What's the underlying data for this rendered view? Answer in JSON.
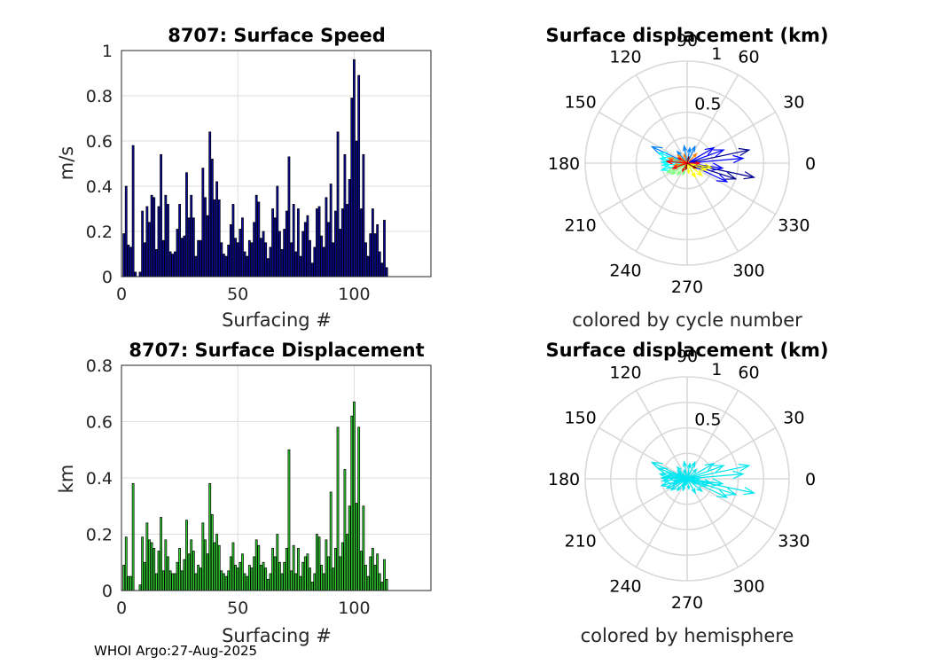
{
  "footer": "WHOI Argo:27-Aug-2025",
  "chart_data": [
    {
      "id": "speed",
      "type": "bar",
      "title": "8707: Surface Speed",
      "xlabel": "Surfacing #",
      "ylabel": "m/s",
      "xlim": [
        0,
        133
      ],
      "ylim": [
        0,
        1
      ],
      "xticks": [
        "0",
        "50",
        "100"
      ],
      "xtick_values": [
        0,
        50,
        100
      ],
      "yticks": [
        "0",
        "0.2",
        "0.4",
        "0.6",
        "0.8",
        "1"
      ],
      "ytick_values": [
        0,
        0.2,
        0.4,
        0.6,
        0.8,
        1
      ],
      "grid": true,
      "bar_color": "#0a0a9e",
      "values": [
        0.19,
        0.4,
        0.14,
        0.13,
        0.58,
        0.02,
        0.0,
        0.02,
        0.29,
        0.15,
        0.31,
        0.24,
        0.36,
        0.35,
        0.12,
        0.31,
        0.54,
        0.16,
        0.36,
        0.32,
        0.11,
        0.1,
        0.11,
        0.21,
        0.32,
        0.17,
        0.18,
        0.46,
        0.26,
        0.36,
        0.26,
        0.09,
        0.16,
        0.16,
        0.48,
        0.35,
        0.27,
        0.64,
        0.52,
        0.34,
        0.42,
        0.34,
        0.15,
        0.1,
        0.09,
        0.14,
        0.23,
        0.32,
        0.17,
        0.15,
        0.21,
        0.26,
        0.11,
        0.09,
        0.16,
        0.15,
        0.24,
        0.36,
        0.33,
        0.17,
        0.2,
        0.15,
        0.08,
        0.13,
        0.3,
        0.26,
        0.4,
        0.2,
        0.12,
        0.21,
        0.29,
        0.53,
        0.15,
        0.32,
        0.11,
        0.3,
        0.09,
        0.2,
        0.24,
        0.27,
        0.16,
        0.06,
        0.13,
        0.3,
        0.31,
        0.18,
        0.13,
        0.35,
        0.24,
        0.41,
        0.15,
        0.29,
        0.64,
        0.21,
        0.3,
        0.54,
        0.32,
        0.43,
        0.79,
        0.96,
        0.6,
        0.89,
        0.3,
        0.54,
        0.15,
        0.09,
        0.19,
        0.3,
        0.19,
        0.23,
        0.11,
        0.06,
        0.25,
        0.04
      ]
    },
    {
      "id": "displacement",
      "type": "bar",
      "title": "8707: Surface Displacement",
      "xlabel": "Surfacing #",
      "ylabel": "km",
      "xlim": [
        0,
        133
      ],
      "ylim": [
        0,
        0.8
      ],
      "xticks": [
        "0",
        "50",
        "100"
      ],
      "xtick_values": [
        0,
        50,
        100
      ],
      "yticks": [
        "0",
        "0.2",
        "0.4",
        "0.6",
        "0.8"
      ],
      "ytick_values": [
        0,
        0.2,
        0.4,
        0.6,
        0.8
      ],
      "grid": true,
      "bar_color": "#2fd02f",
      "values": [
        0.09,
        0.19,
        0.05,
        0.05,
        0.38,
        0.0,
        0.0,
        0.02,
        0.19,
        0.1,
        0.24,
        0.18,
        0.17,
        0.15,
        0.06,
        0.14,
        0.26,
        0.07,
        0.18,
        0.12,
        0.07,
        0.06,
        0.06,
        0.1,
        0.15,
        0.07,
        0.11,
        0.25,
        0.13,
        0.18,
        0.14,
        0.06,
        0.09,
        0.08,
        0.24,
        0.18,
        0.13,
        0.38,
        0.27,
        0.17,
        0.2,
        0.16,
        0.07,
        0.06,
        0.05,
        0.07,
        0.12,
        0.17,
        0.09,
        0.08,
        0.1,
        0.13,
        0.06,
        0.05,
        0.09,
        0.08,
        0.12,
        0.18,
        0.16,
        0.09,
        0.1,
        0.08,
        0.04,
        0.06,
        0.15,
        0.12,
        0.2,
        0.1,
        0.06,
        0.1,
        0.15,
        0.5,
        0.07,
        0.16,
        0.06,
        0.15,
        0.05,
        0.1,
        0.12,
        0.13,
        0.08,
        0.03,
        0.06,
        0.2,
        0.19,
        0.09,
        0.06,
        0.18,
        0.12,
        0.35,
        0.08,
        0.15,
        0.58,
        0.12,
        0.17,
        0.43,
        0.2,
        0.3,
        0.62,
        0.67,
        0.31,
        0.58,
        0.14,
        0.3,
        0.09,
        0.05,
        0.12,
        0.15,
        0.09,
        0.13,
        0.06,
        0.03,
        0.11,
        0.04
      ]
    },
    {
      "id": "polar-cycle",
      "type": "polar-compass",
      "title": "Surface displacement (km)",
      "caption": "colored by cycle number",
      "rmax": 1,
      "rticks": [
        "0.5",
        "1"
      ],
      "rtick_values": [
        0.5,
        1
      ],
      "angle_labels": [
        "0",
        "30",
        "60",
        "90",
        "120",
        "150",
        "180",
        "210",
        "240",
        "270",
        "300",
        "330"
      ],
      "angle_values": [
        0,
        30,
        60,
        90,
        120,
        150,
        180,
        210,
        240,
        270,
        300,
        330
      ],
      "color_mode": "cycle",
      "colormap": [
        "#00008f",
        "#0000ff",
        "#0080ff",
        "#00ffff",
        "#80ff80",
        "#ffff00",
        "#ff8000",
        "#ff0000",
        "#800000"
      ],
      "vectors": [
        {
          "angle": 12,
          "mag": 0.62
        },
        {
          "angle": -12,
          "mag": 0.67
        },
        {
          "angle": -18,
          "mag": 0.5
        },
        {
          "angle": 5,
          "mag": 0.55
        },
        {
          "angle": 20,
          "mag": 0.38
        },
        {
          "angle": -25,
          "mag": 0.43
        },
        {
          "angle": -8,
          "mag": 0.35
        },
        {
          "angle": 30,
          "mag": 0.3
        },
        {
          "angle": 65,
          "mag": 0.18
        },
        {
          "angle": 80,
          "mag": 0.15
        },
        {
          "angle": 100,
          "mag": 0.17
        },
        {
          "angle": 130,
          "mag": 0.15
        },
        {
          "angle": 155,
          "mag": 0.38
        },
        {
          "angle": 160,
          "mag": 0.3
        },
        {
          "angle": 170,
          "mag": 0.27
        },
        {
          "angle": 178,
          "mag": 0.25
        },
        {
          "angle": 185,
          "mag": 0.24
        },
        {
          "angle": 195,
          "mag": 0.26
        },
        {
          "angle": 205,
          "mag": 0.22
        },
        {
          "angle": 215,
          "mag": 0.19
        },
        {
          "angle": 230,
          "mag": 0.15
        },
        {
          "angle": 250,
          "mag": 0.12
        },
        {
          "angle": 280,
          "mag": 0.1
        },
        {
          "angle": 300,
          "mag": 0.16
        },
        {
          "angle": 320,
          "mag": 0.19
        },
        {
          "angle": 340,
          "mag": 0.2
        },
        {
          "angle": 350,
          "mag": 0.24
        },
        {
          "angle": 140,
          "mag": 0.12
        },
        {
          "angle": 165,
          "mag": 0.19
        },
        {
          "angle": 190,
          "mag": 0.13
        },
        {
          "angle": 45,
          "mag": 0.13
        },
        {
          "angle": 110,
          "mag": 0.09
        },
        {
          "angle": 240,
          "mag": 0.09
        },
        {
          "angle": 0,
          "mag": 0.12
        },
        {
          "angle": 175,
          "mag": 0.2
        },
        {
          "angle": 200,
          "mag": 0.15
        },
        {
          "angle": 150,
          "mag": 0.1
        },
        {
          "angle": 330,
          "mag": 0.1
        },
        {
          "angle": 75,
          "mag": 0.06
        },
        {
          "angle": 260,
          "mag": 0.06
        }
      ]
    },
    {
      "id": "polar-hemisphere",
      "type": "polar-compass",
      "title": "Surface displacement (km)",
      "caption": "colored by hemisphere",
      "rmax": 1,
      "rticks": [
        "0.5",
        "1"
      ],
      "rtick_values": [
        0.5,
        1
      ],
      "angle_labels": [
        "0",
        "30",
        "60",
        "90",
        "120",
        "150",
        "180",
        "210",
        "240",
        "270",
        "300",
        "330"
      ],
      "angle_values": [
        0,
        30,
        60,
        90,
        120,
        150,
        180,
        210,
        240,
        270,
        300,
        330
      ],
      "color_mode": "single",
      "color": "#00e5f0",
      "vectors": [
        {
          "angle": 12,
          "mag": 0.62
        },
        {
          "angle": -12,
          "mag": 0.67
        },
        {
          "angle": -18,
          "mag": 0.5
        },
        {
          "angle": 5,
          "mag": 0.55
        },
        {
          "angle": 20,
          "mag": 0.38
        },
        {
          "angle": -25,
          "mag": 0.43
        },
        {
          "angle": -8,
          "mag": 0.35
        },
        {
          "angle": 30,
          "mag": 0.3
        },
        {
          "angle": 65,
          "mag": 0.18
        },
        {
          "angle": 80,
          "mag": 0.15
        },
        {
          "angle": 100,
          "mag": 0.17
        },
        {
          "angle": 130,
          "mag": 0.15
        },
        {
          "angle": 155,
          "mag": 0.38
        },
        {
          "angle": 160,
          "mag": 0.3
        },
        {
          "angle": 170,
          "mag": 0.27
        },
        {
          "angle": 178,
          "mag": 0.25
        },
        {
          "angle": 185,
          "mag": 0.24
        },
        {
          "angle": 195,
          "mag": 0.26
        },
        {
          "angle": 205,
          "mag": 0.22
        },
        {
          "angle": 215,
          "mag": 0.19
        },
        {
          "angle": 230,
          "mag": 0.15
        },
        {
          "angle": 250,
          "mag": 0.12
        },
        {
          "angle": 280,
          "mag": 0.1
        },
        {
          "angle": 300,
          "mag": 0.16
        },
        {
          "angle": 320,
          "mag": 0.19
        },
        {
          "angle": 340,
          "mag": 0.2
        },
        {
          "angle": 350,
          "mag": 0.24
        },
        {
          "angle": 140,
          "mag": 0.12
        },
        {
          "angle": 165,
          "mag": 0.19
        },
        {
          "angle": 190,
          "mag": 0.13
        },
        {
          "angle": 45,
          "mag": 0.13
        },
        {
          "angle": 110,
          "mag": 0.09
        },
        {
          "angle": 240,
          "mag": 0.09
        },
        {
          "angle": 0,
          "mag": 0.12
        },
        {
          "angle": 175,
          "mag": 0.2
        },
        {
          "angle": 200,
          "mag": 0.15
        },
        {
          "angle": 150,
          "mag": 0.1
        },
        {
          "angle": 330,
          "mag": 0.1
        },
        {
          "angle": 75,
          "mag": 0.06
        },
        {
          "angle": 260,
          "mag": 0.06
        }
      ]
    }
  ]
}
